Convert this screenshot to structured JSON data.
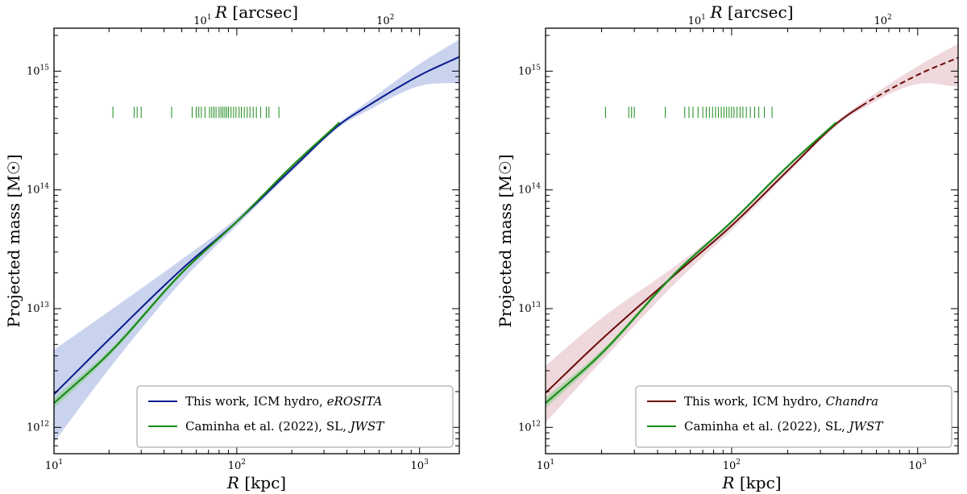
{
  "figure": {
    "panels": [
      {
        "x_bottom_label_var": "R",
        "x_bottom_label_unit": "[kpc]",
        "x_top_label_var": "R",
        "x_top_label_unit": "[arcsec]",
        "y_label": "Projected mass",
        "y_label_unit": "[M☉]",
        "x_bottom_ticks": [
          {
            "base": "10",
            "exp": "1",
            "value": 10
          },
          {
            "base": "10",
            "exp": "2",
            "value": 100
          },
          {
            "base": "10",
            "exp": "3",
            "value": 1000
          }
        ],
        "x_top_ticks": [
          {
            "base": "10",
            "exp": "1",
            "value": 10
          },
          {
            "base": "10",
            "exp": "2",
            "value": 100
          }
        ],
        "y_ticks": [
          {
            "base": "10",
            "exp": "12",
            "value": 1000000000000.0
          },
          {
            "base": "10",
            "exp": "13",
            "value": 10000000000000.0
          },
          {
            "base": "10",
            "exp": "14",
            "value": 100000000000000.0
          },
          {
            "base": "10",
            "exp": "15",
            "value": 1000000000000000.0
          }
        ],
        "legend": [
          {
            "name": "This work, ICM hydro,",
            "italic": "eROSITA",
            "color": "#0a1a8c"
          },
          {
            "name": "Caminha et al. (2022), SL,",
            "italic": "JWST",
            "color": "#1a8a1a"
          }
        ]
      },
      {
        "x_bottom_label_var": "R",
        "x_bottom_label_unit": "[kpc]",
        "x_top_label_var": "R",
        "x_top_label_unit": "[arcsec]",
        "y_label": "Projected mass",
        "y_label_unit": "[M☉]",
        "x_bottom_ticks": [
          {
            "base": "10",
            "exp": "1",
            "value": 10
          },
          {
            "base": "10",
            "exp": "2",
            "value": 100
          },
          {
            "base": "10",
            "exp": "3",
            "value": 1000
          }
        ],
        "x_top_ticks": [
          {
            "base": "10",
            "exp": "1",
            "value": 10
          },
          {
            "base": "10",
            "exp": "2",
            "value": 100
          }
        ],
        "y_ticks": [
          {
            "base": "10",
            "exp": "12",
            "value": 1000000000000.0
          },
          {
            "base": "10",
            "exp": "13",
            "value": 10000000000000.0
          },
          {
            "base": "10",
            "exp": "14",
            "value": 100000000000000.0
          },
          {
            "base": "10",
            "exp": "15",
            "value": 1000000000000000.0
          }
        ],
        "legend": [
          {
            "name": "This work, ICM hydro,",
            "italic": "Chandra",
            "color": "#6b0a0a"
          },
          {
            "name": "Caminha et al. (2022), SL,",
            "italic": "JWST",
            "color": "#1a8a1a"
          }
        ]
      }
    ]
  },
  "chart_data": [
    {
      "type": "line",
      "xscale": "log",
      "yscale": "log",
      "xlabel": "R [kpc]",
      "ylabel": "Projected mass [M☉]",
      "x2label": "R [arcsec]",
      "xlim": [
        10,
        1650
      ],
      "ylim": [
        600000000000.0,
        2300000000000000.0
      ],
      "arcsec_per_kpc_factor": 0.1538,
      "series": [
        {
          "name": "This work, ICM hydro, eROSITA",
          "color": "#0a1a8c",
          "band_color": "#9eaee0",
          "x": [
            10,
            20,
            50,
            100,
            200,
            365,
            500,
            1000,
            1650
          ],
          "y": [
            1900000000000.0,
            5500000000000.0,
            21500000000000.0,
            54000000000000.0,
            150000000000000.0,
            355000000000000.0,
            490000000000000.0,
            920000000000000.0,
            1320000000000000.0
          ],
          "y_low": [
            750000000000.0,
            3100000000000.0,
            17000000000000.0,
            50000000000000.0,
            143000000000000.0,
            340000000000000.0,
            450000000000000.0,
            750000000000000.0,
            800000000000000.0
          ],
          "y_high": [
            4500000000000.0,
            9500000000000.0,
            26000000000000.0,
            58000000000000.0,
            158000000000000.0,
            370000000000000.0,
            530000000000000.0,
            1150000000000000.0,
            1850000000000000.0
          ],
          "dashed_from_x": null
        },
        {
          "name": "Caminha et al. (2022), SL, JWST",
          "color": "#1a8a1a",
          "band_color": "#8fd08f",
          "x": [
            10,
            20,
            50,
            100,
            200,
            365
          ],
          "y": [
            1600000000000.0,
            4200000000000.0,
            20000000000000.0,
            54000000000000.0,
            158000000000000.0,
            370000000000000.0
          ],
          "y_low": [
            1450000000000.0,
            3950000000000.0,
            19300000000000.0,
            52800000000000.0,
            154000000000000.0,
            360000000000000.0
          ],
          "y_high": [
            1780000000000.0,
            4450000000000.0,
            20700000000000.0,
            55200000000000.0,
            162000000000000.0,
            380000000000000.0
          ],
          "dashed_from_x": null
        }
      ],
      "rug": {
        "y": 450000000000000.0,
        "color": "#1a8a1a",
        "x": [
          21,
          27.5,
          28.5,
          30,
          44,
          57,
          60,
          62,
          64,
          67,
          71,
          73,
          75,
          77,
          80,
          82,
          84,
          86,
          88,
          90,
          93,
          96,
          99,
          103,
          106,
          110,
          114,
          118,
          123,
          128,
          135,
          145,
          150,
          170
        ]
      }
    },
    {
      "type": "line",
      "xscale": "log",
      "yscale": "log",
      "xlabel": "R [kpc]",
      "ylabel": "Projected mass [M☉]",
      "x2label": "R [arcsec]",
      "xlim": [
        10,
        1650
      ],
      "ylim": [
        600000000000.0,
        2300000000000000.0
      ],
      "arcsec_per_kpc_factor": 0.1538,
      "series": [
        {
          "name": "This work, ICM hydro, Chandra",
          "color": "#6b0a0a",
          "band_color": "#e0b8c0",
          "x": [
            10,
            20,
            50,
            100,
            200,
            365,
            500,
            1000,
            1650
          ],
          "y": [
            1950000000000.0,
            5500000000000.0,
            19500000000000.0,
            50000000000000.0,
            145000000000000.0,
            360000000000000.0,
            510000000000000.0,
            930000000000000.0,
            1300000000000000.0
          ],
          "y_low": [
            1100000000000.0,
            3600000000000.0,
            16500000000000.0,
            46000000000000.0,
            137000000000000.0,
            345000000000000.0,
            480000000000000.0,
            780000000000000.0,
            740000000000000.0
          ],
          "y_high": [
            3300000000000.0,
            8300000000000.0,
            23000000000000.0,
            54000000000000.0,
            153000000000000.0,
            375000000000000.0,
            540000000000000.0,
            1100000000000000.0,
            1700000000000000.0
          ],
          "dashed_from_x": 500
        },
        {
          "name": "Caminha et al. (2022), SL, JWST",
          "color": "#1a8a1a",
          "band_color": "#8fd08f",
          "x": [
            10,
            20,
            50,
            100,
            200,
            365
          ],
          "y": [
            1600000000000.0,
            4200000000000.0,
            20000000000000.0,
            54000000000000.0,
            158000000000000.0,
            370000000000000.0
          ],
          "y_low": [
            1450000000000.0,
            3950000000000.0,
            19300000000000.0,
            52800000000000.0,
            154000000000000.0,
            360000000000000.0
          ],
          "y_high": [
            1780000000000.0,
            4450000000000.0,
            20700000000000.0,
            55200000000000.0,
            162000000000000.0,
            380000000000000.0
          ],
          "dashed_from_x": null
        }
      ],
      "rug": {
        "y": 450000000000000.0,
        "color": "#1a8a1a",
        "x": [
          21,
          28,
          29,
          30,
          44,
          56,
          59,
          62,
          66,
          70,
          73,
          76,
          79,
          82,
          85,
          88,
          91,
          94,
          97,
          100,
          103,
          107,
          111,
          115,
          120,
          126,
          133,
          140,
          150,
          165
        ]
      }
    }
  ]
}
